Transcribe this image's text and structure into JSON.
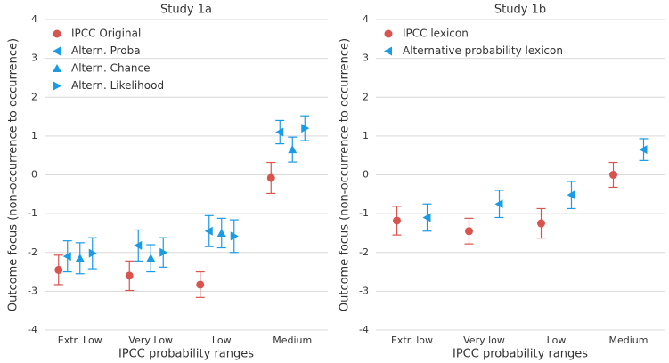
{
  "chart_data": [
    {
      "type": "errorbar",
      "title": "Study 1a",
      "x_label": "IPCC probability ranges",
      "y_label": "Outcome focus (non-occurrence to occurrence)",
      "categories": [
        "Extr. Low",
        "Very Low",
        "Low",
        "Medium"
      ],
      "ylim": [
        -4,
        4
      ],
      "yticks": [
        -4,
        -3,
        -2,
        -1,
        0,
        1,
        2,
        3,
        4
      ],
      "grid": true,
      "legend": "upper left",
      "series": [
        {
          "name": "IPCC Original",
          "color": "#d9534f",
          "marker": "circle",
          "values": [
            -2.45,
            -2.6,
            -2.83,
            -0.08
          ],
          "errors": [
            0.38,
            0.38,
            0.33,
            0.4
          ]
        },
        {
          "name": "Altern. Proba",
          "color": "#1a9be6",
          "marker": "triangle-left",
          "values": [
            -2.1,
            -1.82,
            -1.45,
            1.1
          ],
          "errors": [
            0.4,
            0.4,
            0.4,
            0.3
          ]
        },
        {
          "name": "Altern. Chance",
          "color": "#1a9be6",
          "marker": "triangle-up",
          "values": [
            -2.15,
            -2.15,
            -1.5,
            0.65
          ],
          "errors": [
            0.4,
            0.35,
            0.38,
            0.32
          ]
        },
        {
          "name": "Altern. Likelihood",
          "color": "#1a9be6",
          "marker": "triangle-right",
          "values": [
            -2.02,
            -2.0,
            -1.58,
            1.2
          ],
          "errors": [
            0.4,
            0.38,
            0.42,
            0.32
          ]
        }
      ]
    },
    {
      "type": "errorbar",
      "title": "Study 1b",
      "x_label": "IPCC probability ranges",
      "y_label": "Outcome focus (non-occurrence to occurrence)",
      "categories": [
        "Extr. low",
        "Very low",
        "Low",
        "Medium"
      ],
      "ylim": [
        -4,
        4
      ],
      "yticks": [
        -4,
        -3,
        -2,
        -1,
        0,
        1,
        2,
        3,
        4
      ],
      "grid": true,
      "legend": "upper left",
      "series": [
        {
          "name": "IPCC lexicon",
          "color": "#d9534f",
          "marker": "circle",
          "values": [
            -1.18,
            -1.45,
            -1.25,
            0.0
          ],
          "errors": [
            0.37,
            0.33,
            0.38,
            0.32
          ]
        },
        {
          "name": "Alternative probability lexicon",
          "color": "#1a9be6",
          "marker": "triangle-left",
          "values": [
            -1.1,
            -0.75,
            -0.52,
            0.65
          ],
          "errors": [
            0.35,
            0.35,
            0.35,
            0.28
          ]
        }
      ]
    }
  ]
}
